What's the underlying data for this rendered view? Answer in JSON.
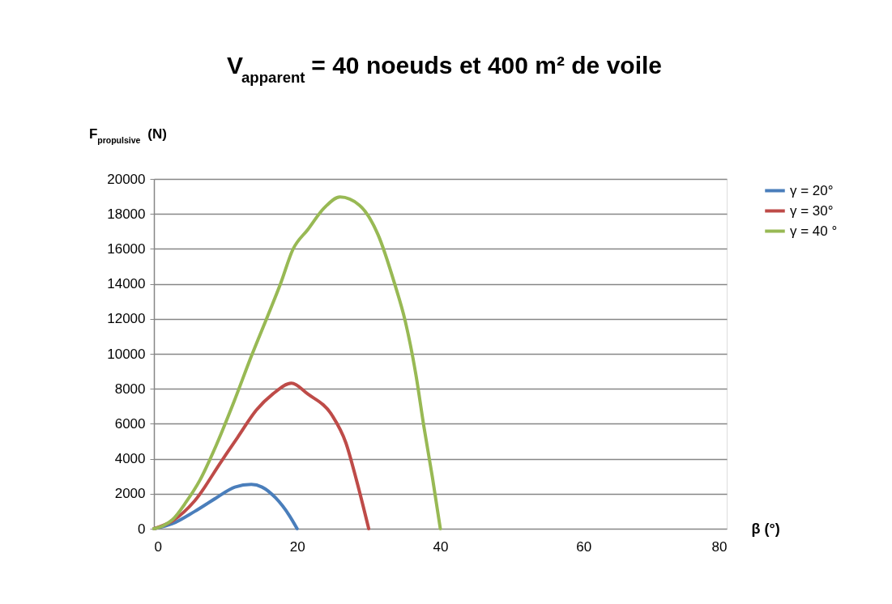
{
  "chart_data": {
    "type": "line",
    "title": "V$_{apparent}$ = 40 noeuds et 400 m² de voile",
    "ylabel": "F$_{propulsive}$(N)",
    "xlabel": "β (°)",
    "xlim": [
      0,
      80
    ],
    "xticks": [
      0,
      20,
      40,
      60,
      80
    ],
    "ylim": [
      0,
      20000
    ],
    "yticks": [
      0,
      2000,
      4000,
      6000,
      8000,
      10000,
      12000,
      14000,
      16000,
      18000,
      20000
    ],
    "grid": "y",
    "legend": "right",
    "line_style": "solid",
    "series": [
      {
        "name": "γ = 20°",
        "color": "#4a7ebb",
        "x": [
          0,
          2.6,
          5.7,
          8.7,
          11.3,
          13.6,
          15.1,
          17.0,
          18.9,
          20
        ],
        "values": [
          0,
          290,
          990,
          1760,
          2380,
          2530,
          2380,
          1760,
          760,
          0
        ]
      },
      {
        "name": "γ = 30°",
        "color": "#be4b48",
        "x": [
          0,
          2.6,
          5.7,
          9.4,
          11.7,
          14.3,
          16.6,
          19.2,
          21.5,
          24.9,
          26.8,
          28.3,
          30
        ],
        "values": [
          0,
          450,
          1600,
          3840,
          5230,
          6780,
          7700,
          8320,
          7700,
          6470,
          4920,
          2760,
          0
        ]
      },
      {
        "name": "γ = 40 °",
        "color": "#98b954",
        "x": [
          0,
          1.3,
          2.6,
          4.5,
          6.4,
          8.7,
          11.3,
          13.6,
          15.9,
          17.7,
          19.4,
          21.5,
          23.8,
          26.0,
          28.7,
          31.3,
          33.6,
          35.1,
          36.6,
          37.7,
          38.9,
          40
        ],
        "values": [
          0,
          170,
          520,
          1530,
          2760,
          4770,
          7390,
          9860,
          12180,
          14030,
          15960,
          17110,
          18350,
          18970,
          18500,
          16810,
          14030,
          11870,
          8780,
          5850,
          2920,
          0
        ]
      }
    ]
  }
}
